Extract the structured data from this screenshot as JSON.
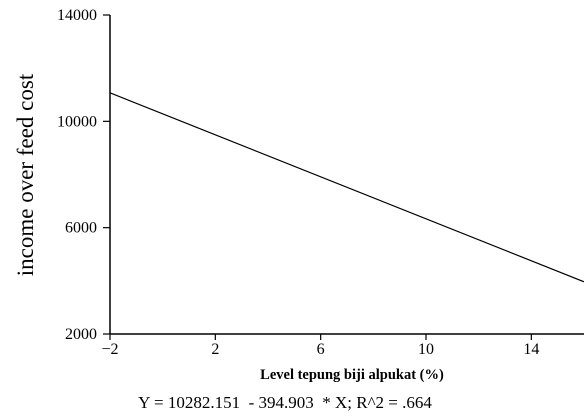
{
  "chart_data": {
    "type": "line",
    "title": "",
    "xlabel": "Level tepung biji alpukat (%)",
    "ylabel": "income over feed cost",
    "footnote": "Y = 10282.151  - 394.903  * X; R^2 = .664",
    "xlim": [
      -2,
      16
    ],
    "ylim": [
      2000,
      14000
    ],
    "x_ticks": [
      -2,
      2,
      6,
      10,
      14
    ],
    "x_tick_labels": [
      "−2",
      "2",
      "6",
      "10",
      "14"
    ],
    "y_ticks": [
      2000,
      6000,
      10000,
      14000
    ],
    "y_tick_labels": [
      "2000",
      "6000",
      "10000",
      "14000"
    ],
    "grid": false,
    "series": [
      {
        "x": [
          -2,
          16
        ],
        "y": [
          11072,
          3964
        ]
      }
    ]
  }
}
